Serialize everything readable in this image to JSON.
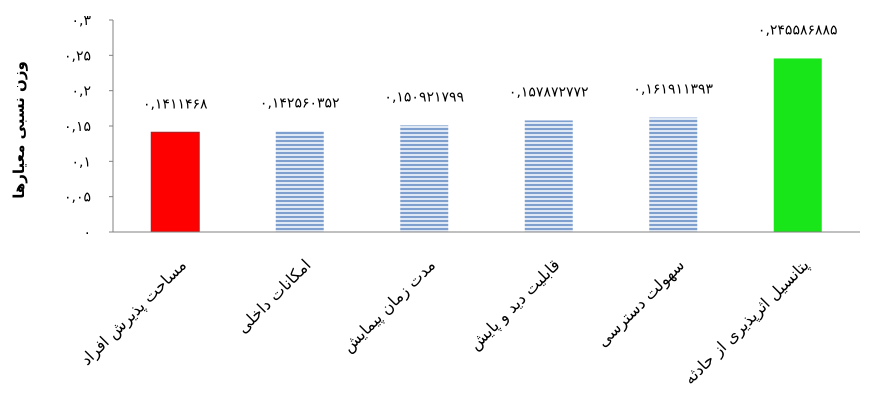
{
  "chart_data": {
    "type": "bar",
    "title": "",
    "xlabel": "",
    "ylabel": "وزن نسبی معیارها",
    "ylim": [
      0,
      0.3
    ],
    "y_ticks": [
      0,
      0.05,
      0.1,
      0.15,
      0.2,
      0.25,
      0.3
    ],
    "y_tick_labels": [
      "۰",
      "۰,۰۵",
      "۰,۱",
      "۰,۱۵",
      "۰,۲",
      "۰,۲۵",
      "۰,۳"
    ],
    "grid": false,
    "legend": "none",
    "categories": [
      "مساحت پذیرش افراد",
      "امکانات داخلی",
      "مدت زمان پیمایش",
      "قابلیت دید و پایش",
      "سهولت دسترسی",
      "پتانسیل اثرپذیری از حادثه"
    ],
    "values": [
      0.1411468,
      0.142560352,
      0.150921799,
      0.157872772,
      0.161911393,
      0.245586885
    ],
    "data_labels": [
      "۰,۱۴۱۱۴۶۸",
      "۰,۱۴۲۵۶۰۳۵۲",
      "۰,۱۵۰۹۲۱۷۹۹",
      "۰,۱۵۷۸۷۲۷۷۲",
      "۰,۱۶۱۹۱۱۳۹۳",
      "۰,۲۴۵۵۸۶۸۸۵"
    ],
    "bar_styles": [
      "red",
      "striped-blue",
      "striped-blue",
      "striped-blue",
      "striped-blue",
      "green"
    ],
    "colors": {
      "red": "#ff0000",
      "red_edge": "#a0282a",
      "striped_blue": "#7f9fcf",
      "striped_blue_light": "#dfe8f5",
      "green": "#19e619",
      "axis": "#808080"
    }
  }
}
